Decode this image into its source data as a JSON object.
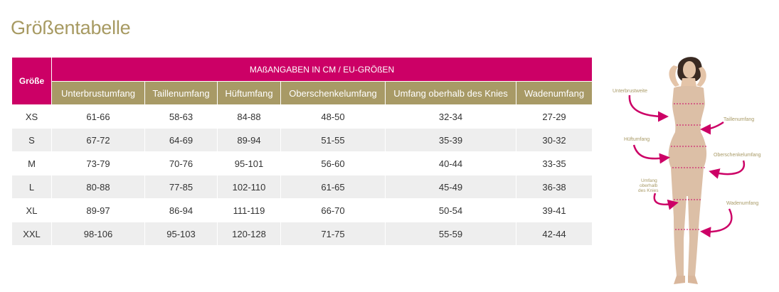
{
  "title": "Größentabelle",
  "table": {
    "size_header": "Größe",
    "group_header": "MAßANGABEN IN CM / EU-GRÖßEN",
    "columns": [
      "Unterbrustumfang",
      "Taillenumfang",
      "Hüftumfang",
      "Oberschenkelumfang",
      "Umfang oberhalb des Knies",
      "Wadenumfang"
    ],
    "rows": [
      {
        "size": "XS",
        "values": [
          "61-66",
          "58-63",
          "84-88",
          "48-50",
          "32-34",
          "27-29"
        ]
      },
      {
        "size": "S",
        "values": [
          "67-72",
          "64-69",
          "89-94",
          "51-55",
          "35-39",
          "30-32"
        ]
      },
      {
        "size": "M",
        "values": [
          "73-79",
          "70-76",
          "95-101",
          "56-60",
          "40-44",
          "33-35"
        ]
      },
      {
        "size": "L",
        "values": [
          "80-88",
          "77-85",
          "102-110",
          "61-65",
          "45-49",
          "36-38"
        ]
      },
      {
        "size": "XL",
        "values": [
          "89-97",
          "86-94",
          "111-119",
          "66-70",
          "50-54",
          "39-41"
        ]
      },
      {
        "size": "XXL",
        "values": [
          "98-106",
          "95-103",
          "120-128",
          "71-75",
          "55-59",
          "42-44"
        ]
      }
    ]
  },
  "figure": {
    "labels": {
      "underbust": "Unterbrustweite",
      "waist": "Taillenumfang",
      "hip": "Hüftumfang",
      "thigh": "Oberschenkelumfang",
      "knee_line1": "Umfang",
      "knee_line2": "oberhalb",
      "knee_line3": "des Knies",
      "calf": "Wadenumfang"
    }
  },
  "colors": {
    "accent_magenta": "#cc0066",
    "header_tan": "#a89a66",
    "title_gold": "#a79a62",
    "row_stripe": "#eeeeee",
    "garment_skin": "#dcbfa6"
  }
}
